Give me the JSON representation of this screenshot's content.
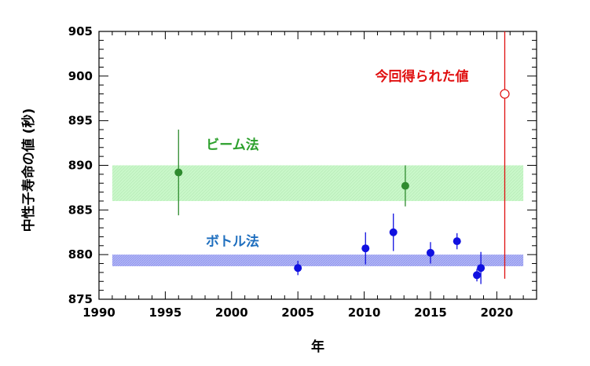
{
  "chart_data": {
    "type": "scatter",
    "xlabel": "年",
    "ylabel": "中性子寿命の値 (秒)",
    "xlim": [
      1990,
      2023
    ],
    "ylim": [
      875,
      905
    ],
    "xticks": [
      1990,
      1995,
      2000,
      2005,
      2010,
      2015,
      2020
    ],
    "yticks": [
      875,
      880,
      885,
      890,
      895,
      900,
      905
    ],
    "grid": false,
    "bands": [
      {
        "label": "ビーム法",
        "x_range": [
          1991,
          2022
        ],
        "y_range": [
          886,
          890
        ],
        "color": "#ccf5cc",
        "label_color": "#2ca02c"
      },
      {
        "label": "ボトル法",
        "x_range": [
          1991,
          2022
        ],
        "y_range": [
          878.7,
          880
        ],
        "color": "#aab0f5",
        "label_color": "#1f6fbf"
      }
    ],
    "series": [
      {
        "name": "ビーム法",
        "color": "#2e8b2e",
        "marker": "filled-circle",
        "points": [
          {
            "x": 1996.0,
            "y": 889.2,
            "err": 4.8
          },
          {
            "x": 2013.1,
            "y": 887.7,
            "err": 2.3
          }
        ]
      },
      {
        "name": "ボトル法",
        "color": "#1010e0",
        "marker": "filled-circle",
        "points": [
          {
            "x": 2005.0,
            "y": 878.5,
            "err": 0.8
          },
          {
            "x": 2010.1,
            "y": 880.7,
            "err": 1.8
          },
          {
            "x": 2012.2,
            "y": 882.5,
            "err": 2.1
          },
          {
            "x": 2015.0,
            "y": 880.2,
            "err": 1.2
          },
          {
            "x": 2017.0,
            "y": 881.5,
            "err": 0.9
          },
          {
            "x": 2018.5,
            "y": 877.7,
            "err": 0.7
          },
          {
            "x": 2018.8,
            "y": 878.5,
            "err": 1.8
          }
        ]
      },
      {
        "name": "今回得られた値",
        "color": "#e01010",
        "marker": "open-circle",
        "points": [
          {
            "x": 2020.6,
            "y": 898.0,
            "err_low": 20.7,
            "err_high": 7.0
          }
        ]
      }
    ],
    "annotations": [
      {
        "text": "今回得られた値",
        "color": "#e01010"
      },
      {
        "text": "ビーム法",
        "color": "#2ca02c"
      },
      {
        "text": "ボトル法",
        "color": "#1f6fbf"
      }
    ]
  }
}
